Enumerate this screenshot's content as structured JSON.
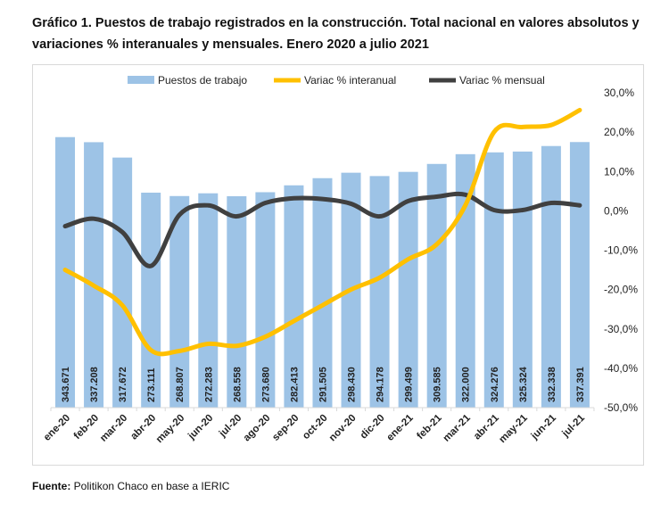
{
  "title": "Gráfico 1. Puestos de trabajo registrados en la construcción. Total nacional en valores absolutos y variaciones % interanuales y mensuales. Enero 2020 a julio 2021",
  "source_label": "Fuente:",
  "source_text": " Politikon Chaco en base a IERIC",
  "colors": {
    "bars": "#9dc3e6",
    "interanual": "#ffc000",
    "mensual": "#404040"
  },
  "chart_data": {
    "type": "bar+line",
    "categories": [
      "ene-20",
      "feb-20",
      "mar-20",
      "abr-20",
      "may-20",
      "jun-20",
      "jul-20",
      "ago-20",
      "sep-20",
      "oct-20",
      "nov-20",
      "dic-20",
      "ene-21",
      "feb-21",
      "mar-21",
      "abr-21",
      "may-21",
      "jun-21",
      "jul-21"
    ],
    "series": [
      {
        "name": "Puestos de trabajo",
        "type": "bar",
        "axis": "left",
        "values": [
          343671,
          337208,
          317672,
          273111,
          268807,
          272283,
          268558,
          273680,
          282413,
          291505,
          298430,
          294178,
          299499,
          309585,
          322000,
          324276,
          325324,
          332338,
          337391
        ],
        "labels": [
          "343.671",
          "337.208",
          "317.672",
          "273.111",
          "268.807",
          "272.283",
          "268.558",
          "273.680",
          "282.413",
          "291.505",
          "298.430",
          "294.178",
          "299.499",
          "309.585",
          "322.000",
          "324.276",
          "325.324",
          "332.338",
          "337.391"
        ]
      },
      {
        "name": "Variac % interanual",
        "type": "line",
        "axis": "right",
        "values": [
          -15,
          -19,
          -24,
          -35.4,
          -35.6,
          -33.8,
          -34.3,
          -32,
          -28,
          -24,
          -20,
          -17,
          -12.3,
          -8.5,
          1.4,
          20,
          21.3,
          21.8,
          25.6
        ]
      },
      {
        "name": "Variac % mensual",
        "type": "line",
        "axis": "right",
        "values": [
          -3.9,
          -2,
          -5.4,
          -14,
          -1,
          1.4,
          -1.4,
          2,
          3.2,
          3,
          1.8,
          -1.4,
          2.5,
          3.6,
          4.1,
          0.2,
          0.2,
          2,
          1.4
        ]
      }
    ],
    "left_axis_range": [
      0,
      400000
    ],
    "right_axis": {
      "range": [
        -50,
        30
      ],
      "ticks": [
        30,
        20,
        10,
        0,
        -10,
        -20,
        -30,
        -40,
        -50
      ],
      "tick_labels": [
        "30,0%",
        "20,0%",
        "10,0%",
        "0,0%",
        "-10,0%",
        "-20,0%",
        "-30,0%",
        "-40,0%",
        "-50,0%"
      ]
    },
    "legend": {
      "placement": "top",
      "entries": [
        "Puestos de trabajo",
        "Variac % interanual",
        "Variac % mensual"
      ]
    },
    "grid": false
  }
}
